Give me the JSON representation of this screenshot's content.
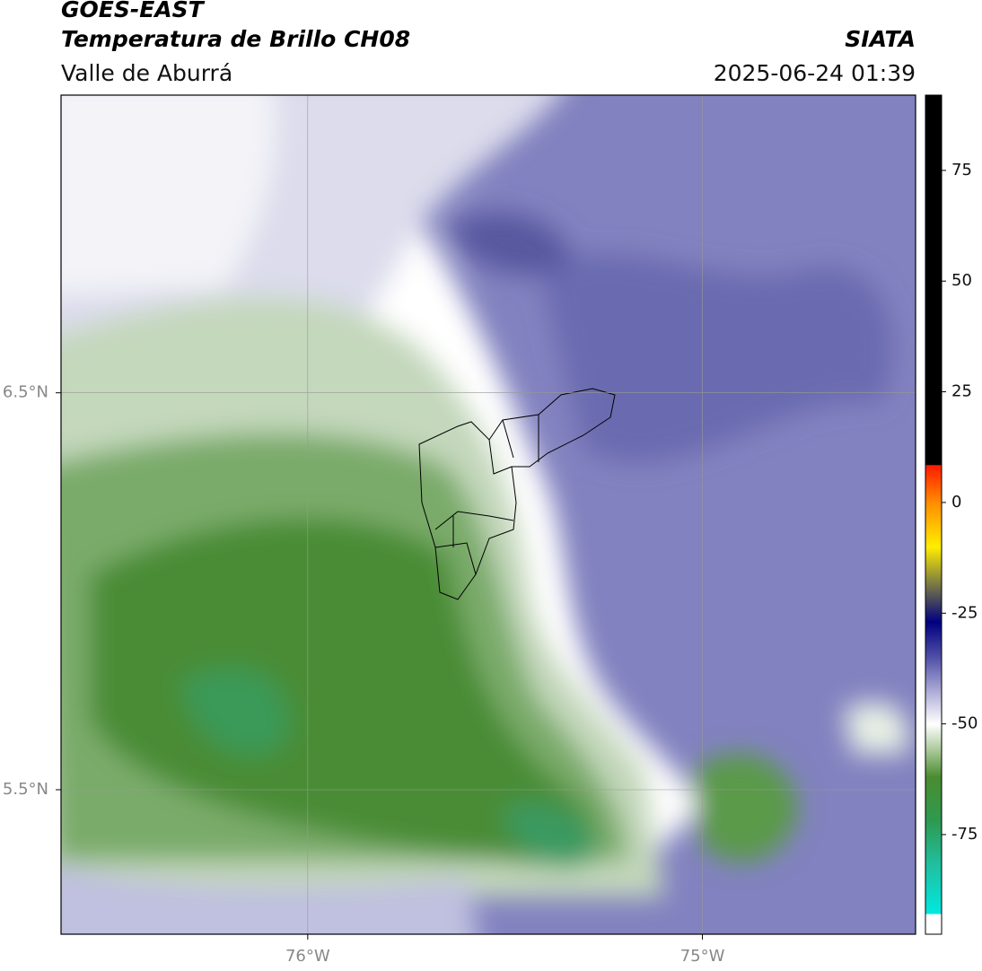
{
  "header": {
    "title": "GOES-EAST",
    "subtitle": "Temperatura de Brillo CH08",
    "region": "Valle de Aburrá",
    "source": "SIATA",
    "timestamp": "2025-06-24 01:39"
  },
  "map": {
    "xlim": [
      -76.625,
      -74.46
    ],
    "ylim": [
      5.136,
      7.25
    ],
    "xticks": [
      {
        "value": -76,
        "label": "76°W"
      },
      {
        "value": -75,
        "label": "75°W"
      }
    ],
    "yticks": [
      {
        "value": 6.5,
        "label": "6.5°N"
      },
      {
        "value": 5.5,
        "label": "5.5°N"
      }
    ],
    "grid": true
  },
  "colorbar": {
    "lim": [
      -97.5,
      92
    ],
    "ticks": [
      75,
      50,
      25,
      0,
      -25,
      -50,
      -75
    ],
    "stops": [
      {
        "value": 92,
        "color": "#000000"
      },
      {
        "value": 8.5,
        "color": "#000000"
      },
      {
        "value": 8.4,
        "color": "#ff1a00"
      },
      {
        "value": 0,
        "color": "#ff8c00"
      },
      {
        "value": -10,
        "color": "#ffee00"
      },
      {
        "value": -18,
        "color": "#808040"
      },
      {
        "value": -27,
        "color": "#000080"
      },
      {
        "value": -35,
        "color": "#5050a8"
      },
      {
        "value": -43,
        "color": "#b0b0d8"
      },
      {
        "value": -50,
        "color": "#ffffff"
      },
      {
        "value": -56,
        "color": "#a8c898"
      },
      {
        "value": -62,
        "color": "#4a8c30"
      },
      {
        "value": -72,
        "color": "#2e9a50"
      },
      {
        "value": -82,
        "color": "#20c0a0"
      },
      {
        "value": -92.9,
        "color": "#00e8e0"
      },
      {
        "value": -93,
        "color": "#ffffff"
      },
      {
        "value": -97.5,
        "color": "#ffffff"
      }
    ]
  }
}
